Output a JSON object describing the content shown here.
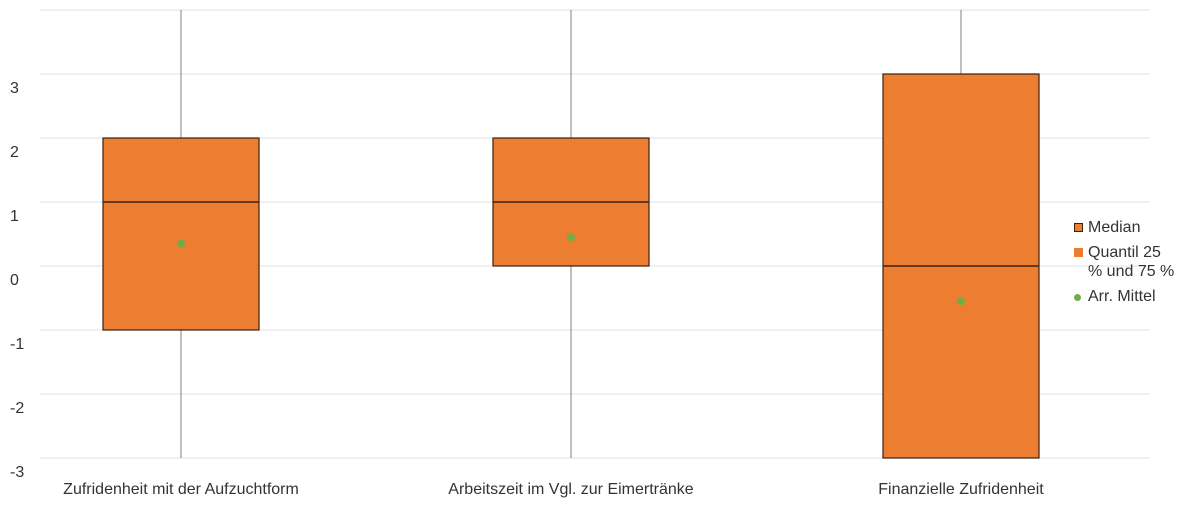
{
  "chart_data": {
    "type": "box",
    "categories": [
      "Zufridenheit mit der Aufzuchtform",
      "Arbeitszeit im Vgl. zur Eimertränke",
      "Finanzielle Zufridenheit"
    ],
    "min": [
      -3,
      -3,
      -3
    ],
    "q1": [
      -1,
      0,
      -3
    ],
    "median": [
      1,
      1,
      0
    ],
    "q3": [
      2,
      2,
      3
    ],
    "max": [
      4,
      4,
      4
    ],
    "mean": [
      0.35,
      0.45,
      -0.55
    ],
    "box_color": "#ed7d31",
    "mean_color": "#70ad47",
    "whisker_color": "#808080",
    "legend": [
      "Median",
      "Quantil 25 % und 75 %",
      "Arr. Mittel"
    ],
    "legend_position": "right",
    "ylim": [
      -3,
      4
    ],
    "yticks": [
      -3,
      -2,
      -1,
      0,
      1,
      2,
      3
    ],
    "grid": true
  }
}
